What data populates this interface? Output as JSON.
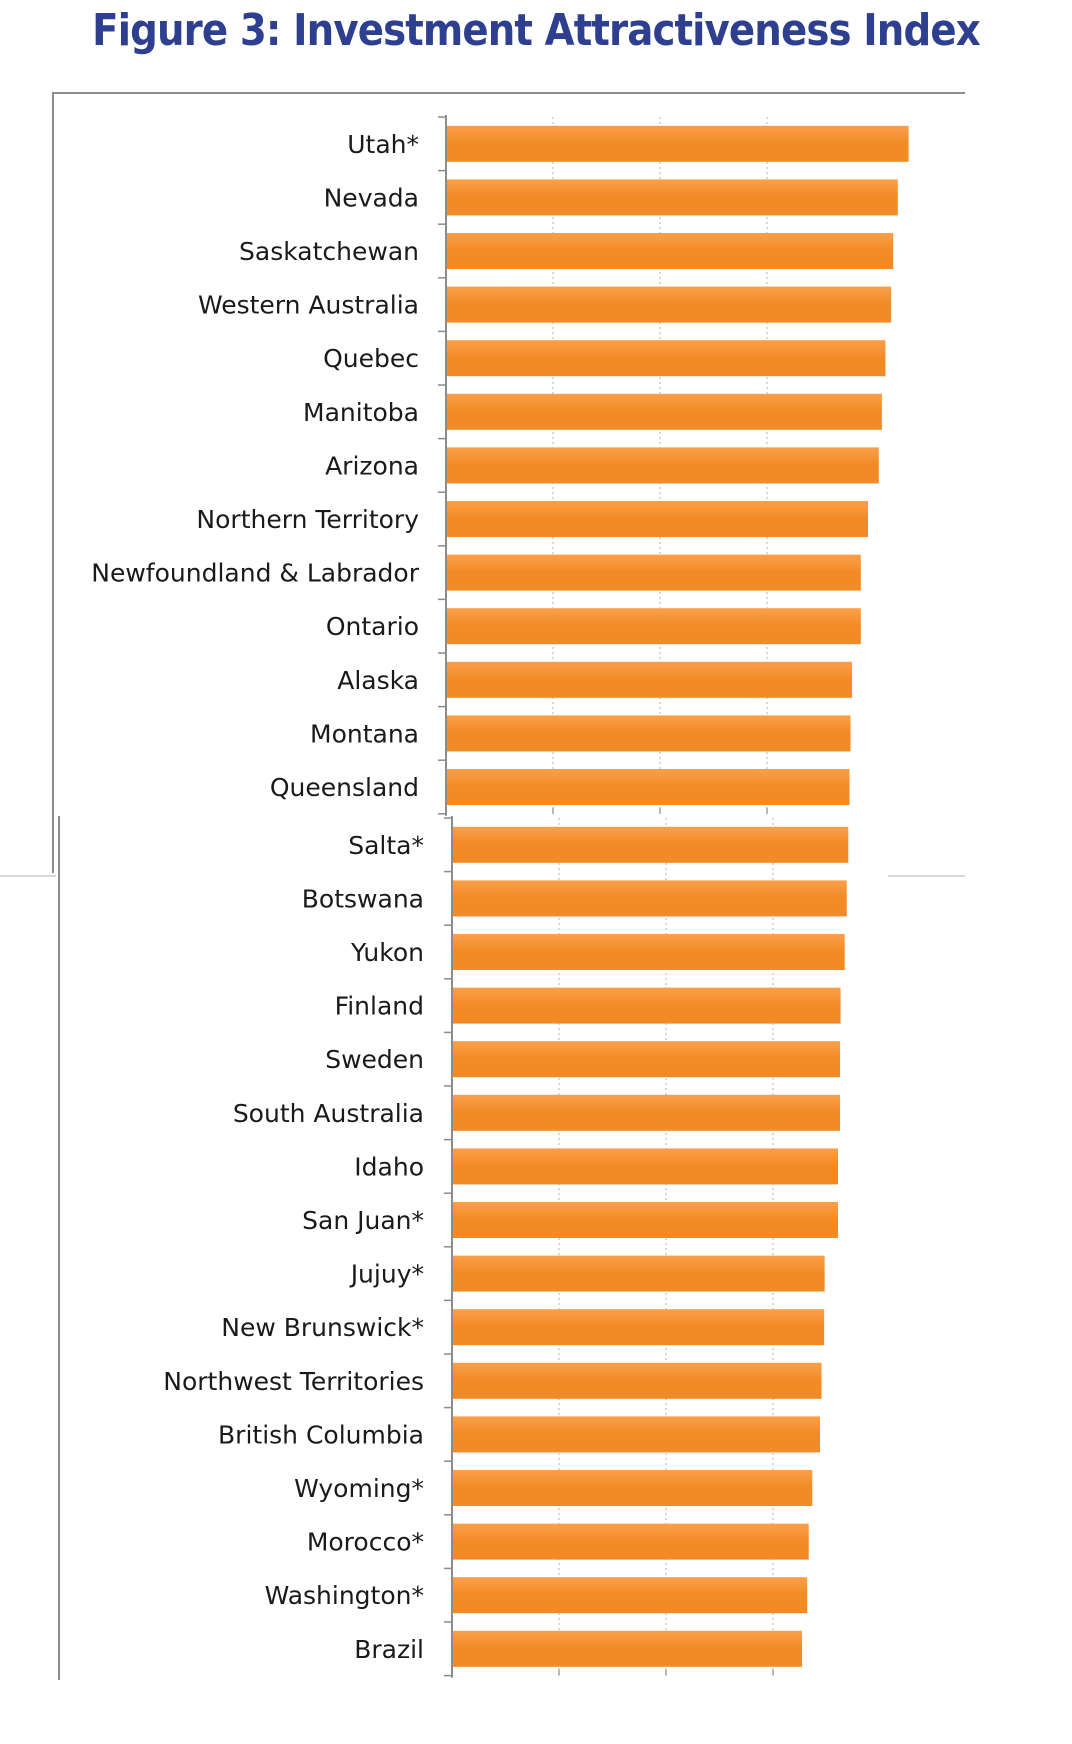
{
  "title": "Figure 3: Investment Attractiveness Index",
  "colors": {
    "bar": "#f28a25",
    "bar_highlight": "#fba04a",
    "title": "#2e3f90",
    "axis": "#8c8c8c",
    "grid": "#bdbdbd"
  },
  "chart_data": [
    {
      "type": "bar",
      "orientation": "horizontal",
      "title": "Figure 3: Investment Attractiveness Index",
      "xlabel": "",
      "ylabel": "",
      "xlim": [
        0,
        100
      ],
      "grid": true,
      "legend": "none",
      "categories": [
        "Utah*",
        "Nevada",
        "Saskatchewan",
        "Western Australia",
        "Quebec",
        "Manitoba",
        "Arizona",
        "Northern Territory",
        "Newfoundland & Labrador",
        "Ontario",
        "Alaska",
        "Montana",
        "Queensland"
      ],
      "values": [
        90,
        87.9,
        87,
        86.6,
        85.5,
        84.8,
        84.2,
        82.1,
        80.7,
        80.7,
        79,
        78.7,
        78.5
      ]
    },
    {
      "type": "bar",
      "orientation": "horizontal",
      "title": "",
      "xlabel": "",
      "ylabel": "",
      "xlim": [
        0,
        100
      ],
      "grid": true,
      "legend": "none",
      "categories": [
        "Salta*",
        "Botswana",
        "Yukon",
        "Finland",
        "Sweden",
        "South Australia",
        "Idaho",
        "San Juan*",
        "Jujuy*",
        "New Brunswick*",
        "Northwest Territories",
        "British Columbia",
        "Wyoming*",
        "Morocco*",
        "Washington*",
        "Brazil"
      ],
      "values": [
        77.1,
        76.8,
        76.4,
        75.6,
        75.5,
        75.5,
        75.1,
        75.1,
        72.5,
        72.4,
        71.9,
        71.6,
        70.1,
        69.4,
        69.1,
        68.1
      ]
    }
  ]
}
